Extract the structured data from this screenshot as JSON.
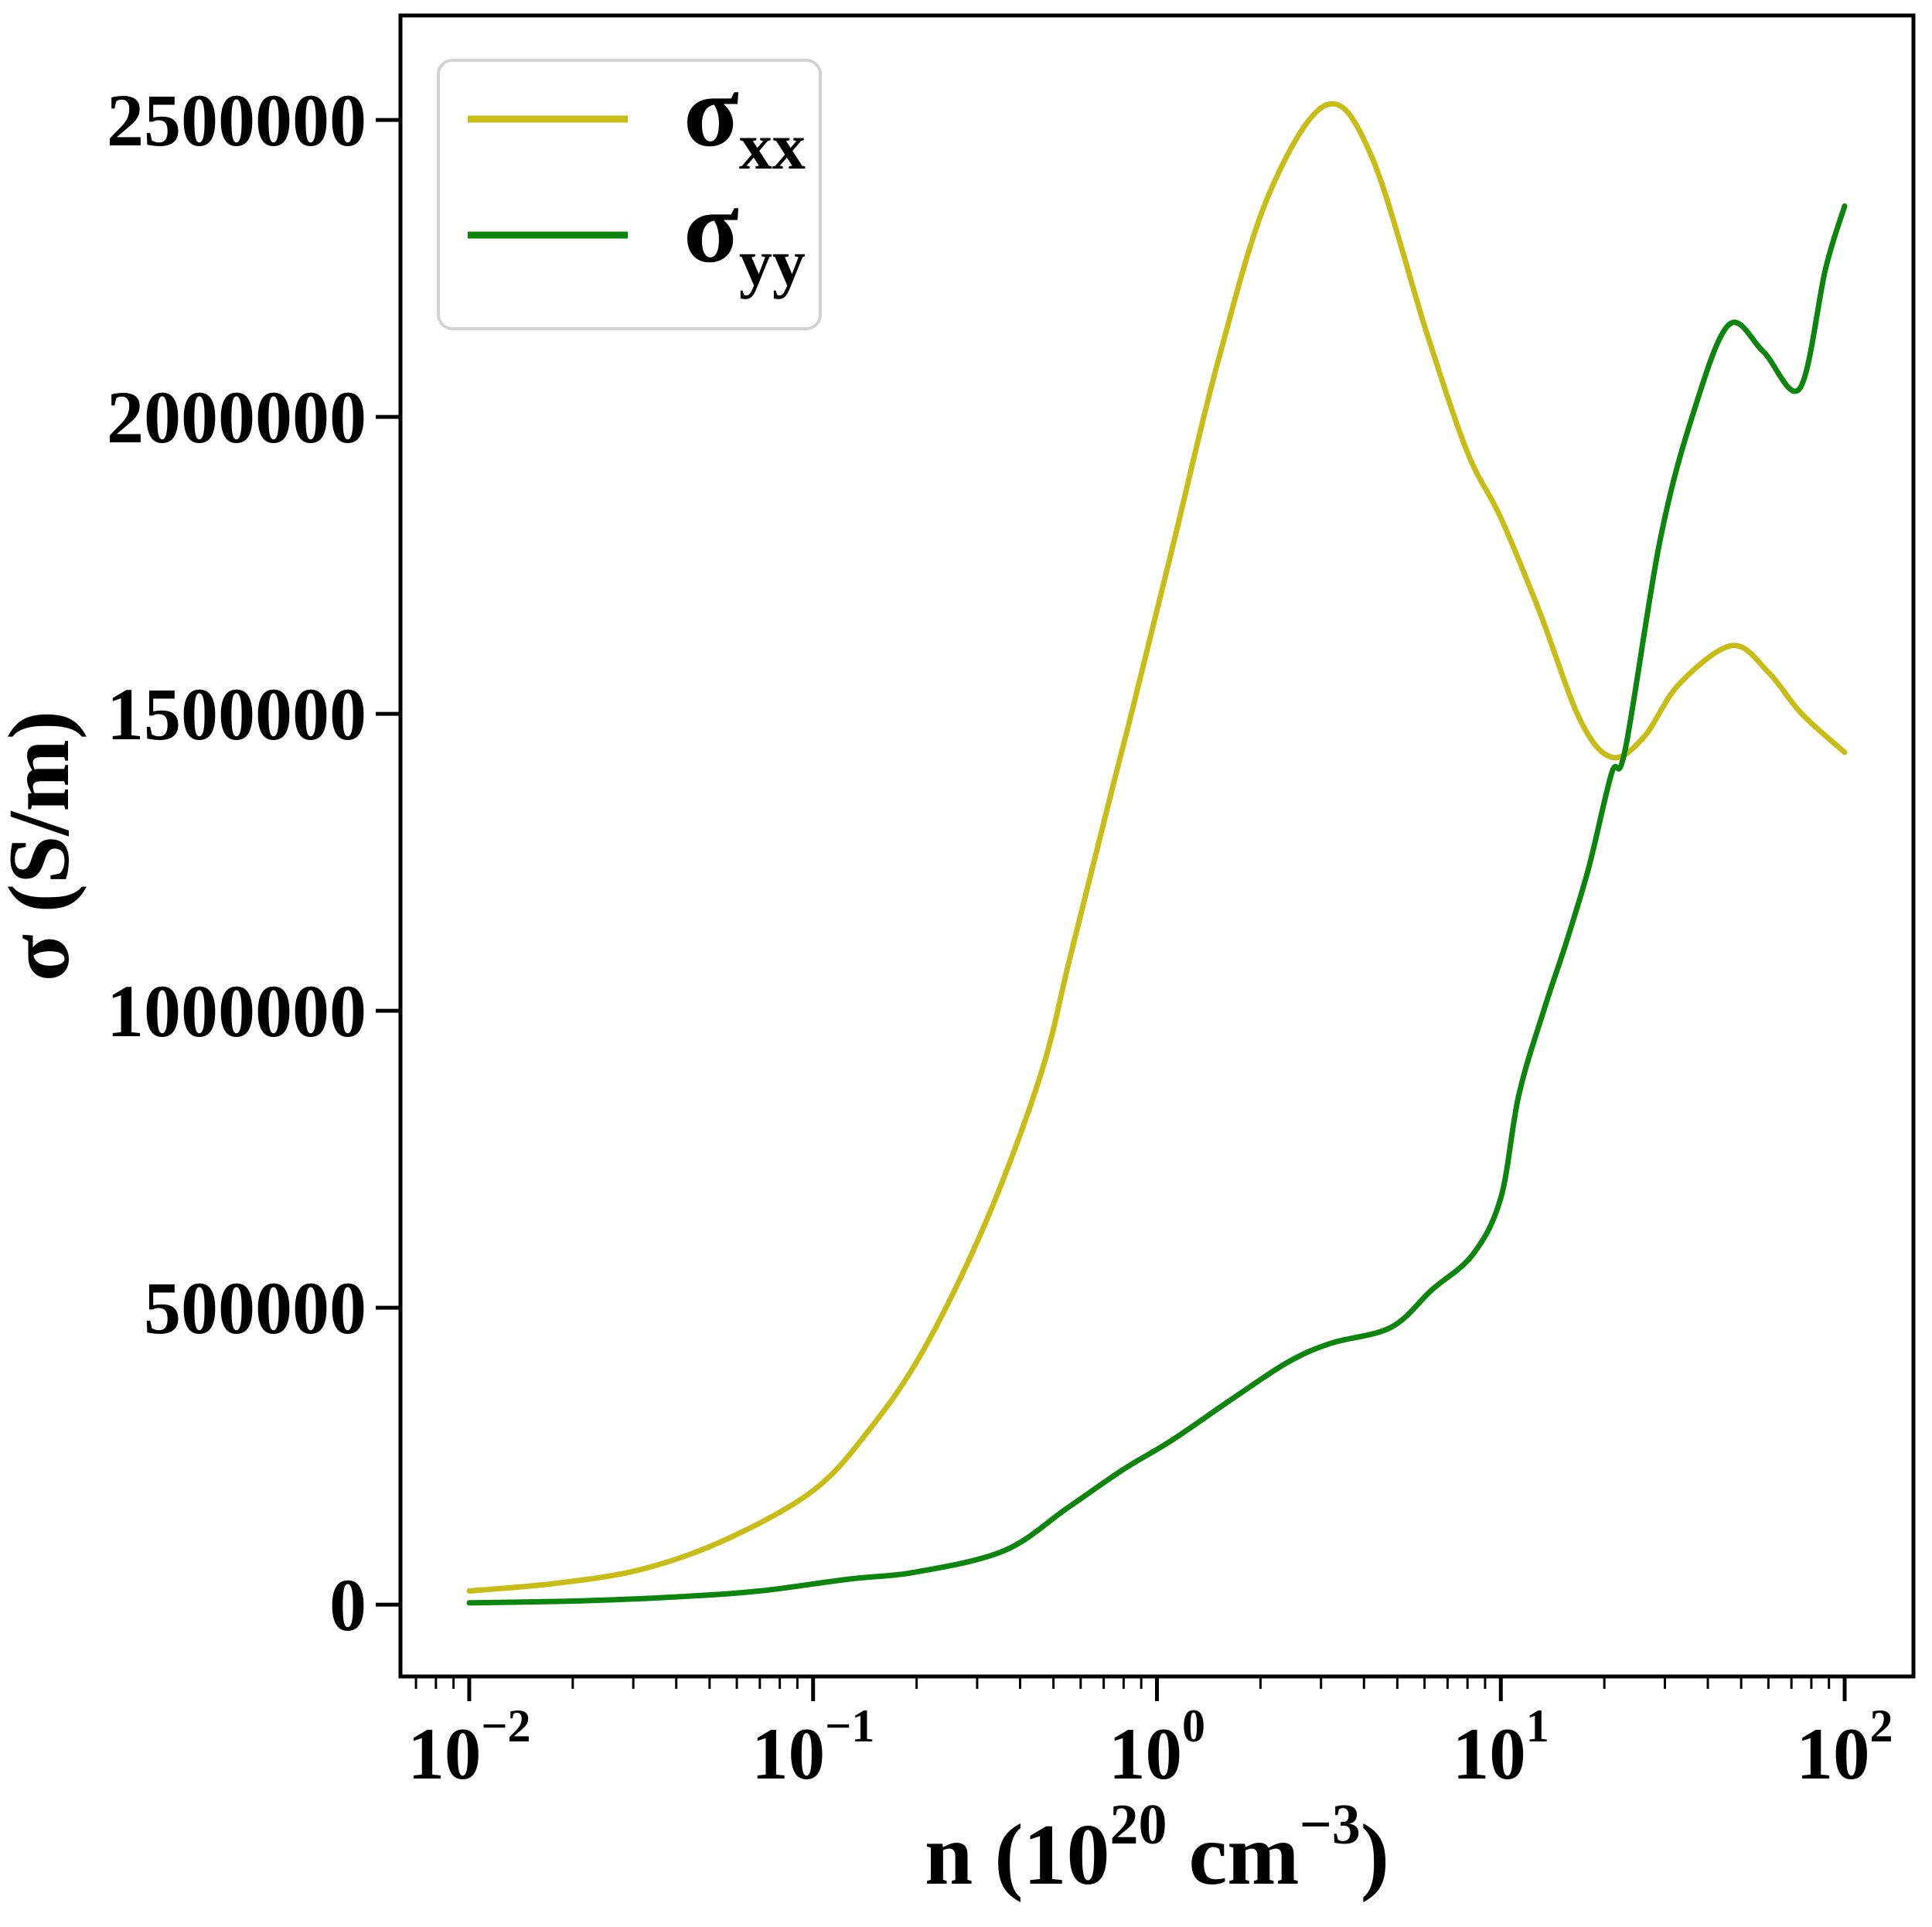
{
  "page": {
    "background": "#ffffff"
  },
  "chart_data": {
    "type": "line",
    "title": "",
    "xlabel_text": "n (10^20 cm^-3)",
    "xlabel_parts": [
      {
        "t": "n (10"
      },
      {
        "t": "20",
        "sup": true
      },
      {
        "t": " cm"
      },
      {
        "t": "−3",
        "sup": true
      },
      {
        "t": ")"
      }
    ],
    "ylabel_text": "σ (S/m)",
    "x_scale": "log10",
    "xlim_log10": [
      -2.2,
      2.2
    ],
    "ylim": [
      -121000,
      2676000
    ],
    "grid": false,
    "x_major_ticks": [
      {
        "value": 0.01,
        "base": "10",
        "exp": "−2"
      },
      {
        "value": 0.1,
        "base": "10",
        "exp": "−1"
      },
      {
        "value": 1,
        "base": "10",
        "exp": "0"
      },
      {
        "value": 10,
        "base": "10",
        "exp": "1"
      },
      {
        "value": 100,
        "base": "10",
        "exp": "2"
      }
    ],
    "y_ticks": [
      {
        "value": 0,
        "label": "0"
      },
      {
        "value": 500000,
        "label": "500000"
      },
      {
        "value": 1000000,
        "label": "1000000"
      },
      {
        "value": 1500000,
        "label": "1500000"
      },
      {
        "value": 2000000,
        "label": "2000000"
      },
      {
        "value": 2500000,
        "label": "2500000"
      }
    ],
    "legend": {
      "position": "upper left",
      "entries": [
        {
          "main": "σ",
          "sub": "xx",
          "color": "#c8bd16"
        },
        {
          "main": "σ",
          "sub": "yy",
          "color": "#0b850b"
        }
      ]
    },
    "series": [
      {
        "name": "sigma_xx",
        "label": "σxx",
        "color": "#c8bd16",
        "points": [
          [
            0.01,
            23000
          ],
          [
            0.018,
            36000
          ],
          [
            0.032,
            60000
          ],
          [
            0.056,
            110000
          ],
          [
            0.1,
            192000
          ],
          [
            0.145,
            293000
          ],
          [
            0.21,
            430000
          ],
          [
            0.32,
            648000
          ],
          [
            0.46,
            894000
          ],
          [
            0.56,
            1092000
          ],
          [
            0.745,
            1379000
          ],
          [
            0.85,
            1509000
          ],
          [
            1.12,
            1790000
          ],
          [
            1.5,
            2090000
          ],
          [
            2.1,
            2370000
          ],
          [
            3.1,
            2525000
          ],
          [
            4.2,
            2440000
          ],
          [
            6.1,
            2140000
          ],
          [
            8.0,
            1940000
          ],
          [
            10,
            1830000
          ],
          [
            13,
            1670000
          ],
          [
            17,
            1490000
          ],
          [
            21,
            1427000
          ],
          [
            26,
            1460000
          ],
          [
            33,
            1550000
          ],
          [
            47,
            1615000
          ],
          [
            60,
            1570000
          ],
          [
            75,
            1500000
          ],
          [
            100,
            1435000
          ]
        ]
      },
      {
        "name": "sigma_yy",
        "label": "σyy",
        "color": "#0b850b",
        "points": [
          [
            0.01,
            3000
          ],
          [
            0.02,
            6000
          ],
          [
            0.04,
            13000
          ],
          [
            0.07,
            23000
          ],
          [
            0.127,
            43000
          ],
          [
            0.2,
            55000
          ],
          [
            0.36,
            91000
          ],
          [
            0.55,
            163000
          ],
          [
            0.8,
            228000
          ],
          [
            1.1,
            276000
          ],
          [
            1.67,
            348000
          ],
          [
            2.4,
            408000
          ],
          [
            3.2,
            440000
          ],
          [
            4.8,
            467000
          ],
          [
            6.3,
            530000
          ],
          [
            8.3,
            590000
          ],
          [
            10,
            685000
          ],
          [
            11.3,
            860000
          ],
          [
            13.5,
            1010000
          ],
          [
            15.4,
            1110000
          ],
          [
            18,
            1240000
          ],
          [
            21,
            1400000
          ],
          [
            23,
            1440000
          ],
          [
            29,
            1790000
          ],
          [
            36,
            2000000
          ],
          [
            46,
            2155000
          ],
          [
            58,
            2110000
          ],
          [
            74,
            2048000
          ],
          [
            88,
            2250000
          ],
          [
            100,
            2355000
          ]
        ]
      }
    ]
  }
}
